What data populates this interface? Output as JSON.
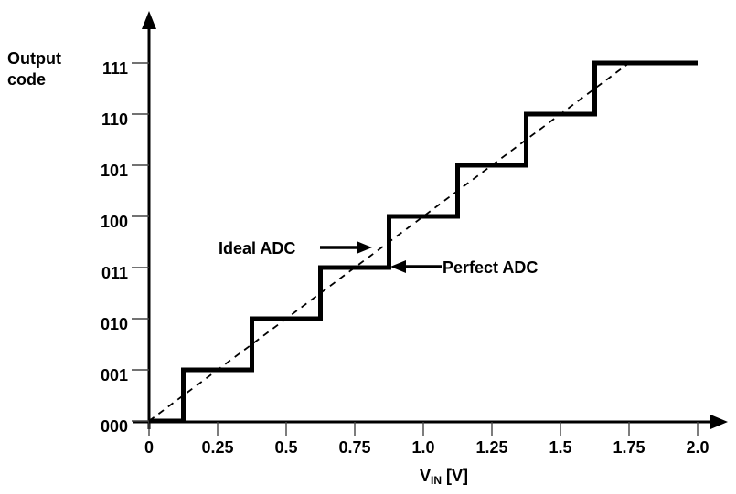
{
  "page": {
    "background_color": "#ffffff",
    "ink_color": "#000000"
  },
  "y_axis_title": {
    "line1": "Output",
    "line2": "code"
  },
  "x_axis_title": {
    "prefix": "V",
    "subscript": "IN",
    "suffix": "[V]"
  },
  "annotations": {
    "ideal": {
      "label": "Ideal ADC",
      "arrow_direction": "right"
    },
    "perfect": {
      "label": "Perfect ADC",
      "arrow_direction": "left"
    }
  },
  "chart_data": {
    "type": "line",
    "title": "",
    "xlabel": "VIN [V]",
    "ylabel": "Output code",
    "xlim": [
      0,
      2.0
    ],
    "grid": false,
    "x_ticks": [
      0,
      0.25,
      0.5,
      0.75,
      1.0,
      1.25,
      1.5,
      1.75,
      2.0
    ],
    "x_tick_labels": [
      "0",
      "0.25",
      "0.5",
      "0.75",
      "1.0",
      "1.25",
      "1.5",
      "1.75",
      "2.0"
    ],
    "y_tick_labels": [
      "000",
      "001",
      "010",
      "011",
      "100",
      "101",
      "110",
      "111"
    ],
    "series": [
      {
        "name": "Perfect ADC",
        "style": "staircase-thick-solid",
        "start_voltage": 0,
        "start_code": "000",
        "transition_voltages": [
          0.125,
          0.375,
          0.625,
          0.875,
          1.125,
          1.375,
          1.625
        ],
        "codes": [
          "000",
          "001",
          "010",
          "011",
          "100",
          "101",
          "110",
          "111"
        ],
        "lsb_volts": 0.25,
        "end_voltage": 2.0
      },
      {
        "name": "Ideal ADC",
        "style": "dashed-straight-line",
        "points_v_code": [
          [
            0,
            0
          ],
          [
            1.75,
            7
          ]
        ]
      }
    ]
  }
}
